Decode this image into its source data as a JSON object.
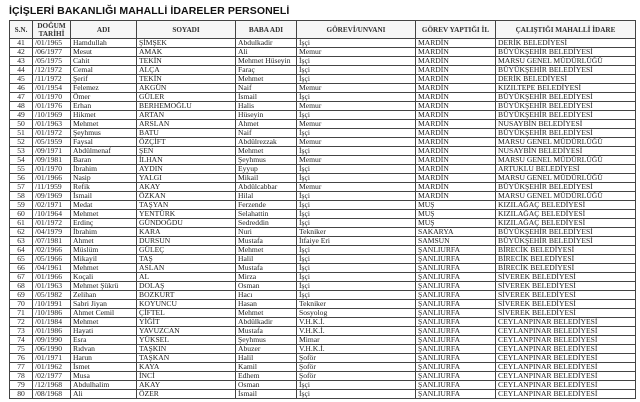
{
  "title": "İÇİŞLERİ BAKANLIĞI MAHALLİ İDARELER PERSONELİ",
  "columns": [
    "S.N.",
    "DOĞUM TARİHİ",
    "ADI",
    "SOYADI",
    "BABA ADI",
    "GÖREVİ/UNVANI",
    "GÖREV YAPTIĞI İL",
    "ÇALIŞTIĞI MAHALLİ İDARE"
  ],
  "rows": [
    [
      "41",
      "/01/1965",
      "Hamdullah",
      "ŞİMŞEK",
      "Abdulkadir",
      "İşçi",
      "MARDİN",
      "DERİK BELEDİYESİ"
    ],
    [
      "42",
      "/06/1977",
      "Mesut",
      "AMAK",
      "Ali",
      "Memur",
      "MARDİN",
      "BÜYÜKŞEHİR BELEDİYESİ"
    ],
    [
      "43",
      "/05/1975",
      "Cahit",
      "TEKİN",
      "Mehmet Hüseyin",
      "İşçi",
      "MARDİN",
      "MARSU GENEL MÜDÜRLÜĞÜ"
    ],
    [
      "44",
      "/12/1972",
      "Cemal",
      "ALÇA",
      "Faraç",
      "İşçi",
      "MARDİN",
      "BÜYÜKŞEHİR BELEDİYESİ"
    ],
    [
      "45",
      "/11/1972",
      "Şerif",
      "TEKİN",
      "Mehmet",
      "İşçi",
      "MARDİN",
      "DERİK BELEDİYESİ"
    ],
    [
      "46",
      "/01/1954",
      "Felemez",
      "AKGÜN",
      "Naif",
      "Memur",
      "MARDİN",
      "KIZILTEPE BELEDİYESİ"
    ],
    [
      "47",
      "/01/1970",
      "Ömer",
      "GÜLER",
      "İsmail",
      "İşçi",
      "MARDİN",
      "BÜYÜKŞEHİR BELEDİYESİ"
    ],
    [
      "48",
      "/01/1976",
      "Erhan",
      "BERHEMOĞLU",
      "Halis",
      "Memur",
      "MARDİN",
      "BÜYÜKŞEHİR BELEDİYESİ"
    ],
    [
      "49",
      "/10/1969",
      "Hikmet",
      "ARTAN",
      "Hüseyin",
      "İşçi",
      "MARDİN",
      "BÜYÜKŞEHİR BELEDİYESİ"
    ],
    [
      "50",
      "/01/1963",
      "Mehmet",
      "ARSLAN",
      "Ahmet",
      "Memur",
      "MARDİN",
      "NUSAYBİN BELEDİYESİ"
    ],
    [
      "51",
      "/01/1972",
      "Şeyhmus",
      "BATU",
      "Naif",
      "İşçi",
      "MARDİN",
      "BÜYÜKŞEHİR BELEDİYESİ"
    ],
    [
      "52",
      "/05/1959",
      "Faysal",
      "ÖZÇİFT",
      "Abdülrezzak",
      "Memur",
      "MARDİN",
      "MARSU GENEL MÜDÜRLÜĞÜ"
    ],
    [
      "53",
      "/09/1971",
      "Abdülmenaf",
      "ŞEN",
      "Mehmet",
      "İşçi",
      "MARDİN",
      "NUSAYBİN BELEDİYESİ"
    ],
    [
      "54",
      "/09/1981",
      "Baran",
      "İLHAN",
      "Şeyhmus",
      "Memur",
      "MARDİN",
      "MARSU GENEL MÜDÜRLÜĞÜ"
    ],
    [
      "55",
      "/01/1970",
      "İbrahim",
      "AYDIN",
      "Eyyup",
      "İşçi",
      "MARDİN",
      "ARTUKLU BELEDİYESİ"
    ],
    [
      "56",
      "/01/1966",
      "Nasip",
      "YALGI",
      "Mikail",
      "İşçi",
      "MARDİN",
      "MARSU GENEL MÜDÜRLÜĞÜ"
    ],
    [
      "57",
      "/11/1959",
      "Refik",
      "AKAY",
      "Abdülcabbar",
      "Memur",
      "MARDİN",
      "BÜYÜKŞEHİR BELEDİYESİ"
    ],
    [
      "58",
      "/09/1969",
      "İsmail",
      "ÖZKAN",
      "Hilal",
      "İşçi",
      "MARDİN",
      "MARSU GENEL MÜDÜRLÜĞÜ"
    ],
    [
      "59",
      "/02/1971",
      "Medat",
      "TAŞYAN",
      "Ferzende",
      "İşçi",
      "MUŞ",
      "KIZILAĞAÇ BELEDİYESİ"
    ],
    [
      "60",
      "/10/1964",
      "Mehmet",
      "YENTÜRK",
      "Selahattin",
      "İşçi",
      "MUŞ",
      "KIZILAĞAÇ BELEDİYESİ"
    ],
    [
      "61",
      "/01/1972",
      "Erdinç",
      "GÜNDOĞDU",
      "Sedreddin",
      "İşçi",
      "MUŞ",
      "KIZILAĞAÇ BELEDİYESİ"
    ],
    [
      "62",
      "/04/1979",
      "İbrahim",
      "KARA",
      "Nuri",
      "Tekniker",
      "SAKARYA",
      "BÜYÜKŞEHİR BELEDİYESİ"
    ],
    [
      "63",
      "/07/1981",
      "Ahmet",
      "DURSUN",
      "Mustafa",
      "İtfaiye Eri",
      "SAMSUN",
      "BÜYÜKŞEHİR BELEDİYESİ"
    ],
    [
      "64",
      "/02/1966",
      "Müslüm",
      "GÜLEÇ",
      "Mehmet",
      "İşçi",
      "ŞANLIURFA",
      "BİRECİK BELEDİYESİ"
    ],
    [
      "65",
      "/05/1966",
      "Mikayil",
      "TAŞ",
      "Halil",
      "İşçi",
      "ŞANLIURFA",
      "BİRECİK BELEDİYESİ"
    ],
    [
      "66",
      "/04/1961",
      "Mehmet",
      "ASLAN",
      "Mustafa",
      "İşçi",
      "ŞANLIURFA",
      "BİRECİK BELEDİYESİ"
    ],
    [
      "67",
      "/01/1966",
      "Koçali",
      "AL",
      "Mirza",
      "İşçi",
      "ŞANLIURFA",
      "SİVEREK BELEDİYESİ"
    ],
    [
      "68",
      "/01/1963",
      "Mehmet Şükrü",
      "DOLAŞ",
      "Osman",
      "İşçi",
      "ŞANLIURFA",
      "SİVEREK BELEDİYESİ"
    ],
    [
      "69",
      "/05/1982",
      "Zelihan",
      "BOZKURT",
      "Hacı",
      "İşçi",
      "ŞANLIURFA",
      "SİVEREK BELEDİYESİ"
    ],
    [
      "70",
      "/10/1991",
      "Sabri Jiyan",
      "KOYUNCU",
      "Hasan",
      "Tekniker",
      "ŞANLIURFA",
      "SİVEREK BELEDİYESİ"
    ],
    [
      "71",
      "/10/1986",
      "Ahmet Cemil",
      "ÇİFTEL",
      "Mehmet",
      "Sosyolog",
      "ŞANLIURFA",
      "SİVEREK BELEDİYESİ"
    ],
    [
      "72",
      "/01/1984",
      "Mehmet",
      "YİĞİT",
      "Abdülkadir",
      "V.H.K.İ.",
      "ŞANLIURFA",
      "CEYLANPINAR BELEDİYESİ"
    ],
    [
      "73",
      "/01/1986",
      "Hayati",
      "YAVUZCAN",
      "Mustafa",
      "V.H.K.İ.",
      "ŞANLIURFA",
      "CEYLANPINAR BELEDİYESİ"
    ],
    [
      "74",
      "/09/1990",
      "Esra",
      "YÜKSEL",
      "Şeyhmus",
      "Mimar",
      "ŞANLIURFA",
      "CEYLANPINAR BELEDİYESİ"
    ],
    [
      "75",
      "/06/1990",
      "Rıdvan",
      "TAŞKIN",
      "Abuzer",
      "V.H.K.İ.",
      "ŞANLIURFA",
      "CEYLANPINAR BELEDİYESİ"
    ],
    [
      "76",
      "/01/1971",
      "Harun",
      "TAŞKAN",
      "Halil",
      "Şoför",
      "ŞANLIURFA",
      "CEYLANPINAR BELEDİYESİ"
    ],
    [
      "77",
      "/01/1962",
      "İsmet",
      "KAYA",
      "Kamil",
      "Şoför",
      "ŞANLIURFA",
      "CEYLANPINAR BELEDİYESİ"
    ],
    [
      "78",
      "/02/1977",
      "Musa",
      "İNCİ",
      "Edhem",
      "Şoför",
      "ŞANLIURFA",
      "CEYLANPINAR BELEDİYESİ"
    ],
    [
      "79",
      "/12/1968",
      "Abdulhalim",
      "AKAY",
      "Osman",
      "İşçi",
      "ŞANLIURFA",
      "CEYLANPINAR BELEDİYESİ"
    ],
    [
      "80",
      "/08/1968",
      "Ali",
      "ÖZER",
      "İsmail",
      "İşçi",
      "ŞANLIURFA",
      "CEYLANPINAR BELEDİYESİ"
    ]
  ]
}
